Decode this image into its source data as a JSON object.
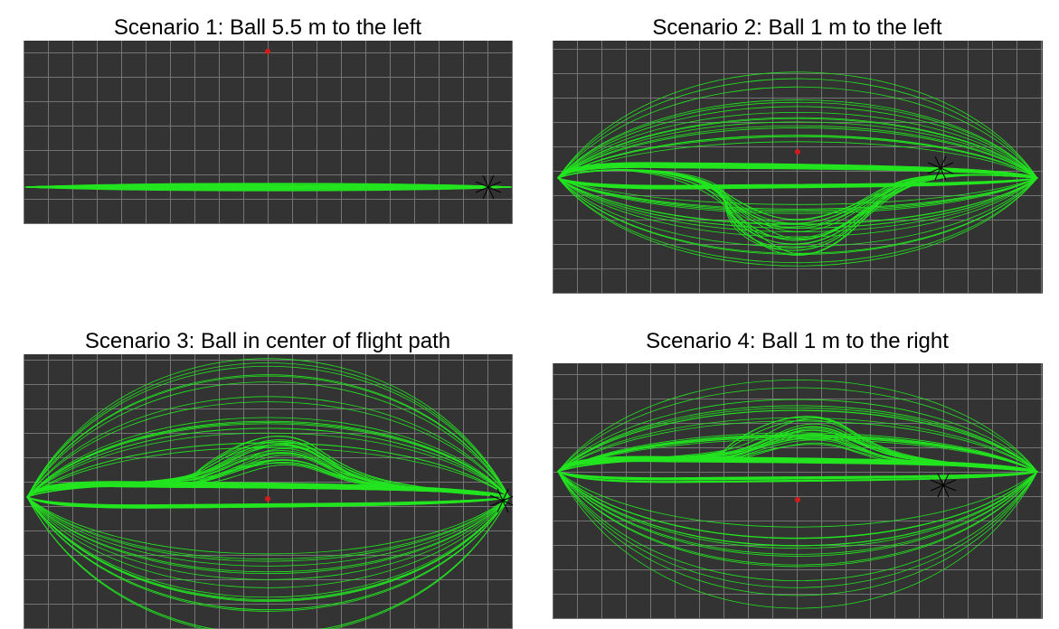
{
  "panels": [
    {
      "title": "Scenario 1: Ball 5.5 m to the left"
    },
    {
      "title": "Scenario 2: Ball 1 m to the left"
    },
    {
      "title": "Scenario 3: Ball in center of flight path"
    },
    {
      "title": "Scenario 4: Ball 1 m to the right"
    }
  ],
  "colors": {
    "background": "#333333",
    "grid": "#8a8a8a",
    "trajectory": "#22e51f",
    "ball": "#d51a1a",
    "drone_icon": "#000000"
  },
  "icons": {
    "ball": "red-dot",
    "drone": "quadrotor-icon"
  }
}
